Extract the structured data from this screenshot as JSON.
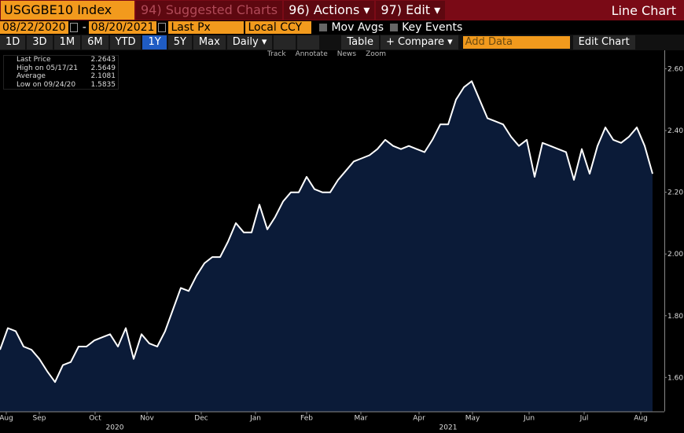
{
  "top_bar": {
    "ticker": "USGGBE10 Index",
    "menus": [
      "94) Suggested Charts",
      "96) Actions ▾",
      "97) Edit ▾"
    ],
    "title": "Line Chart"
  },
  "settings_bar": {
    "start_date": "08/22/2020",
    "separator": "-",
    "end_date": "08/20/2021",
    "field": "Last Px",
    "currency": "Local CCY",
    "options": [
      "Mov Avgs",
      "Key Events"
    ]
  },
  "range_bar": {
    "ranges": [
      "1D",
      "3D",
      "1M",
      "6M",
      "YTD",
      "1Y",
      "5Y",
      "Max"
    ],
    "selected": "1Y",
    "frequency": "Daily ▾",
    "table": "Table",
    "compare": "+ Compare ▾",
    "add_data": "Add Data",
    "edit_chart": "Edit Chart"
  },
  "tools": [
    "Track",
    "Annotate",
    "News",
    "Zoom"
  ],
  "legend": [
    {
      "label": "Last Price",
      "value": 2.2643
    },
    {
      "label": "High on 05/17/21",
      "value": 2.5649
    },
    {
      "label": "Average",
      "value": 2.1081
    },
    {
      "label": "Low on 09/24/20",
      "value": 1.5835
    }
  ],
  "chart_data": {
    "type": "area",
    "color": "#ffffff",
    "fill": "#0b1b38",
    "values": [
      1.69,
      1.76,
      1.75,
      1.7,
      1.69,
      1.66,
      1.62,
      1.585,
      1.64,
      1.65,
      1.7,
      1.7,
      1.72,
      1.73,
      1.74,
      1.7,
      1.76,
      1.66,
      1.74,
      1.71,
      1.7,
      1.75,
      1.82,
      1.89,
      1.88,
      1.93,
      1.97,
      1.99,
      1.99,
      2.04,
      2.1,
      2.07,
      2.07,
      2.16,
      2.08,
      2.12,
      2.17,
      2.2,
      2.2,
      2.25,
      2.21,
      2.2,
      2.2,
      2.24,
      2.27,
      2.3,
      2.31,
      2.32,
      2.34,
      2.37,
      2.35,
      2.34,
      2.35,
      2.34,
      2.33,
      2.37,
      2.42,
      2.42,
      2.5,
      2.54,
      2.56,
      2.5,
      2.44,
      2.43,
      2.42,
      2.38,
      2.35,
      2.37,
      2.25,
      2.36,
      2.35,
      2.34,
      2.33,
      2.24,
      2.34,
      2.26,
      2.35,
      2.41,
      2.37,
      2.36,
      2.38,
      2.41,
      2.35,
      2.26
    ],
    "xlim": [
      0,
      84.5
    ],
    "xticks": [
      {
        "value": 0.8,
        "label": "Aug"
      },
      {
        "value": 5,
        "label": "Sep"
      },
      {
        "value": 12.1,
        "label": "Oct"
      },
      {
        "value": 18.7,
        "label": "Nov"
      },
      {
        "value": 25.6,
        "label": "Dec"
      },
      {
        "value": 32.5,
        "label": "Jan"
      },
      {
        "value": 39,
        "label": "Feb"
      },
      {
        "value": 45.9,
        "label": "Mar"
      },
      {
        "value": 53.3,
        "label": "Apr"
      },
      {
        "value": 60.1,
        "label": "May"
      },
      {
        "value": 67.3,
        "label": "Jun"
      },
      {
        "value": 74.3,
        "label": "Jul"
      },
      {
        "value": 81.5,
        "label": "Aug"
      }
    ],
    "year_ticks": [
      {
        "value": 14.6,
        "label": "2020"
      },
      {
        "value": 57,
        "label": "2021"
      }
    ],
    "ylim": [
      1.49,
      2.66
    ],
    "yticks": [
      {
        "value": 1.6,
        "label": "1.60"
      },
      {
        "value": 1.8,
        "label": "1.80"
      },
      {
        "value": 2.0,
        "label": "2.00"
      },
      {
        "value": 2.2,
        "label": "2.20"
      },
      {
        "value": 2.4,
        "label": "2.40"
      },
      {
        "value": 2.6,
        "label": "2.60"
      }
    ]
  }
}
